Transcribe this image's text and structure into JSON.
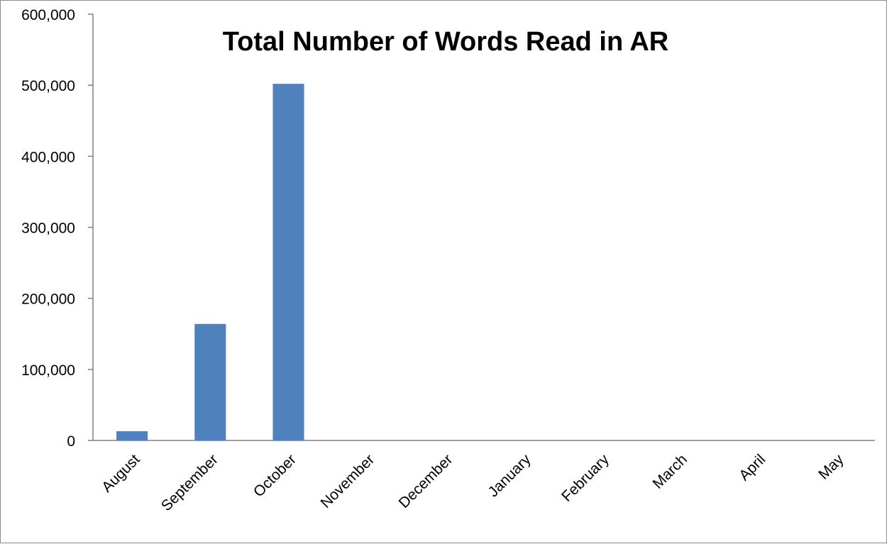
{
  "chart_data": {
    "type": "bar",
    "title": "Total Number of Words Read in AR",
    "xlabel": "",
    "ylabel": "",
    "categories": [
      "August",
      "September",
      "October",
      "November",
      "December",
      "January",
      "February",
      "March",
      "April",
      "May"
    ],
    "series": [
      {
        "values": [
          13000,
          164000,
          502000,
          0,
          0,
          0,
          0,
          0,
          0,
          0
        ]
      }
    ],
    "ylim": [
      0,
      600000
    ],
    "yticks": [
      0,
      100000,
      200000,
      300000,
      400000,
      500000,
      600000
    ],
    "ytick_labels": [
      "0",
      "100,000",
      "200,000",
      "300,000",
      "400,000",
      "500,000",
      "600,000"
    ],
    "grid": false,
    "legend": "none",
    "colors": {
      "bar": "#4f81bd",
      "axis": "#808080"
    }
  }
}
